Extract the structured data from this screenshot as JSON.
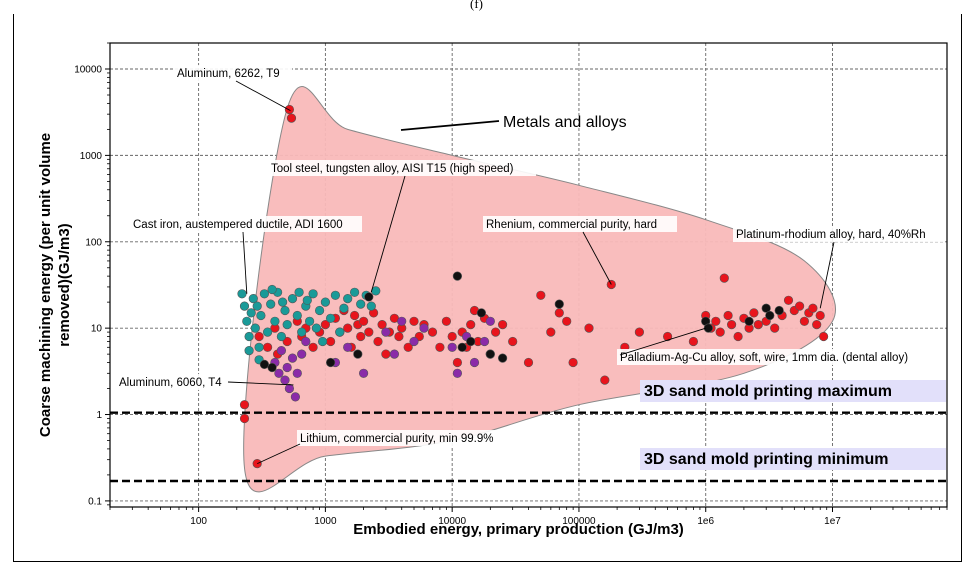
{
  "figure_caption_fragment": "(f)",
  "chart_data": {
    "type": "scatter",
    "xlabel": "Embodied energy, primary production (GJ/m3)",
    "ylabel": "Coarse machining energy (per unit volume removed)(GJ/m3)",
    "x_scale": "log",
    "y_scale": "log",
    "xlim": [
      20,
      80000000
    ],
    "ylim": [
      0.085,
      20000
    ],
    "grid": true,
    "x_ticks": [
      {
        "value": 100,
        "label": "100"
      },
      {
        "value": 1000,
        "label": "1000"
      },
      {
        "value": 10000,
        "label": "10000"
      },
      {
        "value": 100000,
        "label": "100000"
      },
      {
        "value": 1000000,
        "label": "1e6"
      },
      {
        "value": 10000000,
        "label": "1e7"
      }
    ],
    "y_ticks": [
      {
        "value": 0.1,
        "label": "0.1"
      },
      {
        "value": 1,
        "label": "1"
      },
      {
        "value": 10,
        "label": "10"
      },
      {
        "value": 100,
        "label": "100"
      },
      {
        "value": 1000,
        "label": "1000"
      },
      {
        "value": 10000,
        "label": "10000"
      }
    ],
    "envelope": {
      "label": "Metals and alloys",
      "fill": "#f9b9b9",
      "stroke": "#888888",
      "points": [
        [
          230,
          0.24
        ],
        [
          500,
          3500
        ],
        [
          1500,
          2000
        ],
        [
          10000,
          1000
        ],
        [
          100000,
          450
        ],
        [
          1000000,
          180
        ],
        [
          6000000,
          60
        ],
        [
          10000000,
          12
        ],
        [
          2000000,
          3
        ],
        [
          100000,
          1.3
        ],
        [
          10000,
          0.5
        ],
        [
          1000,
          0.33
        ]
      ]
    },
    "colors": {
      "red": "#e8141c",
      "teal": "#1a9a98",
      "purple": "#8a2ba8",
      "black": "#111111"
    },
    "series": [
      {
        "color_key": "red",
        "points": [
          [
            230,
            1.3
          ],
          [
            230,
            0.9
          ],
          [
            290,
            0.27
          ],
          [
            520,
            3400
          ],
          [
            540,
            2700
          ],
          [
            300,
            8
          ],
          [
            350,
            6
          ],
          [
            400,
            10
          ],
          [
            420,
            5
          ],
          [
            500,
            7
          ],
          [
            600,
            12
          ],
          [
            650,
            8
          ],
          [
            700,
            10
          ],
          [
            800,
            6
          ],
          [
            900,
            9
          ],
          [
            1000,
            11
          ],
          [
            1100,
            7
          ],
          [
            1200,
            13
          ],
          [
            1300,
            9
          ],
          [
            1400,
            16
          ],
          [
            1500,
            10
          ],
          [
            1600,
            6
          ],
          [
            1700,
            14
          ],
          [
            1800,
            11
          ],
          [
            1900,
            8
          ],
          [
            2000,
            12
          ],
          [
            2200,
            9
          ],
          [
            2400,
            15
          ],
          [
            2600,
            7
          ],
          [
            2800,
            11
          ],
          [
            3000,
            5
          ],
          [
            3200,
            9
          ],
          [
            3500,
            13
          ],
          [
            3800,
            8
          ],
          [
            4000,
            10
          ],
          [
            4500,
            6
          ],
          [
            5000,
            12
          ],
          [
            5500,
            8
          ],
          [
            6000,
            11
          ],
          [
            7000,
            9
          ],
          [
            8000,
            6
          ],
          [
            9000,
            12
          ],
          [
            10000,
            8
          ],
          [
            11000,
            4
          ],
          [
            12000,
            9
          ],
          [
            13000,
            6
          ],
          [
            14000,
            11
          ],
          [
            15000,
            16
          ],
          [
            16000,
            7
          ],
          [
            18000,
            13
          ],
          [
            20000,
            5
          ],
          [
            22000,
            9
          ],
          [
            25000,
            11
          ],
          [
            30000,
            7
          ],
          [
            40000,
            4
          ],
          [
            50000,
            24
          ],
          [
            60000,
            9
          ],
          [
            70000,
            15
          ],
          [
            80000,
            12
          ],
          [
            90000,
            4
          ],
          [
            120000,
            10
          ],
          [
            160000,
            2.5
          ],
          [
            180000,
            32
          ],
          [
            230000,
            6
          ],
          [
            300000,
            9
          ],
          [
            500000,
            8
          ],
          [
            800000,
            7
          ],
          [
            1000000,
            14
          ],
          [
            1100000,
            10
          ],
          [
            1200000,
            12
          ],
          [
            1300000,
            9
          ],
          [
            1400000,
            38
          ],
          [
            1500000,
            14
          ],
          [
            1600000,
            11
          ],
          [
            1800000,
            8
          ],
          [
            2000000,
            13
          ],
          [
            2200000,
            10
          ],
          [
            2400000,
            15
          ],
          [
            2600000,
            11
          ],
          [
            3000000,
            12
          ],
          [
            3500000,
            10
          ],
          [
            4000000,
            14
          ],
          [
            4500000,
            21
          ],
          [
            5000000,
            16
          ],
          [
            5500000,
            18
          ],
          [
            6000000,
            12
          ],
          [
            6500000,
            15
          ],
          [
            7000000,
            17
          ],
          [
            7500000,
            11
          ],
          [
            8000000,
            14
          ],
          [
            8500000,
            8
          ]
        ]
      },
      {
        "color_key": "teal",
        "points": [
          [
            220,
            25
          ],
          [
            230,
            18
          ],
          [
            240,
            12
          ],
          [
            250,
            8
          ],
          [
            260,
            15
          ],
          [
            270,
            22
          ],
          [
            280,
            10
          ],
          [
            290,
            18
          ],
          [
            300,
            6
          ],
          [
            310,
            14
          ],
          [
            330,
            25
          ],
          [
            350,
            9
          ],
          [
            370,
            19
          ],
          [
            400,
            12
          ],
          [
            420,
            26
          ],
          [
            450,
            8
          ],
          [
            480,
            16
          ],
          [
            500,
            11
          ],
          [
            550,
            22
          ],
          [
            600,
            14
          ],
          [
            650,
            9
          ],
          [
            700,
            18
          ],
          [
            750,
            12
          ],
          [
            800,
            25
          ],
          [
            850,
            10
          ],
          [
            900,
            16
          ],
          [
            950,
            7
          ],
          [
            1000,
            20
          ],
          [
            1100,
            13
          ],
          [
            1200,
            24
          ],
          [
            1300,
            9
          ],
          [
            1400,
            17
          ],
          [
            1500,
            22
          ],
          [
            1700,
            26
          ],
          [
            1900,
            19
          ],
          [
            2100,
            24
          ],
          [
            2300,
            18
          ],
          [
            2500,
            27
          ],
          [
            250,
            5.5
          ],
          [
            300,
            4.3
          ],
          [
            380,
            28
          ],
          [
            460,
            20
          ],
          [
            620,
            26
          ],
          [
            720,
            21
          ]
        ]
      },
      {
        "color_key": "purple",
        "points": [
          [
            400,
            4
          ],
          [
            430,
            3
          ],
          [
            450,
            5.5
          ],
          [
            480,
            2.5
          ],
          [
            500,
            3.5
          ],
          [
            520,
            2
          ],
          [
            550,
            4.5
          ],
          [
            580,
            1.6
          ],
          [
            600,
            3
          ],
          [
            650,
            5
          ],
          [
            700,
            7
          ],
          [
            1200,
            4
          ],
          [
            1500,
            6
          ],
          [
            2000,
            3
          ],
          [
            3000,
            9
          ],
          [
            3500,
            5
          ],
          [
            4000,
            12
          ],
          [
            5000,
            7
          ],
          [
            6000,
            10
          ],
          [
            10000,
            6
          ],
          [
            11000,
            3
          ],
          [
            13000,
            8
          ],
          [
            15000,
            4
          ],
          [
            18000,
            7
          ],
          [
            20000,
            12
          ]
        ]
      },
      {
        "color_key": "black",
        "points": [
          [
            330,
            3.8
          ],
          [
            380,
            3.5
          ],
          [
            1100,
            4
          ],
          [
            1800,
            5
          ],
          [
            2200,
            23
          ],
          [
            11000,
            40
          ],
          [
            12000,
            6
          ],
          [
            14000,
            7
          ],
          [
            17000,
            15
          ],
          [
            20000,
            5
          ],
          [
            25000,
            4.5
          ],
          [
            70000,
            19
          ],
          [
            1000000,
            12
          ],
          [
            1050000,
            10
          ],
          [
            2200000,
            12
          ],
          [
            3000000,
            17
          ],
          [
            3200000,
            14
          ],
          [
            3800000,
            16
          ]
        ]
      }
    ],
    "annotations": [
      {
        "text": "Aluminum, 6262, T9",
        "point": [
          530,
          3300
        ]
      },
      {
        "text": "Tool steel, tungsten alloy, AISI T15 (high speed)",
        "point": [
          2300,
          26
        ]
      },
      {
        "text": "Cast iron, austempered ductile, ADI 1600",
        "point": [
          240,
          25
        ]
      },
      {
        "text": "Rhenium, commercial purity, hard",
        "point": [
          180000,
          32
        ]
      },
      {
        "text": "Platinum-rhodium alloy, hard, 40%Rh",
        "point": [
          8000000,
          17
        ]
      },
      {
        "text": "Palladium-Ag-Cu alloy, soft, wire, 1mm dia. (dental alloy)",
        "point": [
          1000000,
          10
        ]
      },
      {
        "text": "Aluminum, 6060, T4",
        "point": [
          560,
          2.2
        ]
      },
      {
        "text": "Lithium, commercial purity, min 99.9%",
        "point": [
          290,
          0.27
        ]
      }
    ],
    "thresholds": [
      {
        "label": "3D sand mold printing maximum",
        "value": 1.05
      },
      {
        "label": "3D sand mold printing minimum",
        "value": 0.17
      }
    ]
  }
}
